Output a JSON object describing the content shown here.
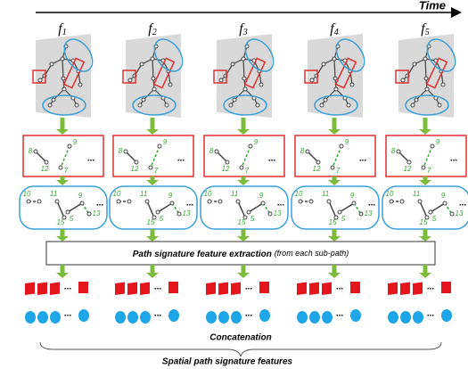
{
  "time_label": "Time",
  "frames": [
    {
      "symbol": "f",
      "subscript": "1",
      "red_numbers": [
        "8",
        "9",
        "12",
        "7"
      ],
      "blue_numbers": [
        "10",
        "11",
        "15",
        "5",
        "9",
        "13"
      ]
    },
    {
      "symbol": "f",
      "subscript": "2",
      "red_numbers": [
        "8",
        "9",
        "12",
        "7"
      ],
      "blue_numbers": [
        "10",
        "11",
        "15",
        "5",
        "9",
        "13"
      ]
    },
    {
      "symbol": "f",
      "subscript": "3",
      "red_numbers": [
        "8",
        "9",
        "12",
        "7"
      ],
      "blue_numbers": [
        "10",
        "11",
        "15",
        "5",
        "9",
        "13"
      ]
    },
    {
      "symbol": "f",
      "subscript": "4",
      "red_numbers": [
        "8",
        "9",
        "12",
        "7"
      ],
      "blue_numbers": [
        "10",
        "11",
        "15",
        "5",
        "9",
        "13"
      ]
    },
    {
      "symbol": "f",
      "subscript": "5",
      "red_numbers": [
        "8",
        "9",
        "12",
        "7"
      ],
      "blue_numbers": [
        "10",
        "11",
        "15",
        "5",
        "9",
        "13"
      ]
    }
  ],
  "ellipsis": "...",
  "extraction": {
    "title": "Path signature feature extraction",
    "note": "(from each sub-path)"
  },
  "concatenation": "Concatenation",
  "output_label": "Spatial path signature features"
}
